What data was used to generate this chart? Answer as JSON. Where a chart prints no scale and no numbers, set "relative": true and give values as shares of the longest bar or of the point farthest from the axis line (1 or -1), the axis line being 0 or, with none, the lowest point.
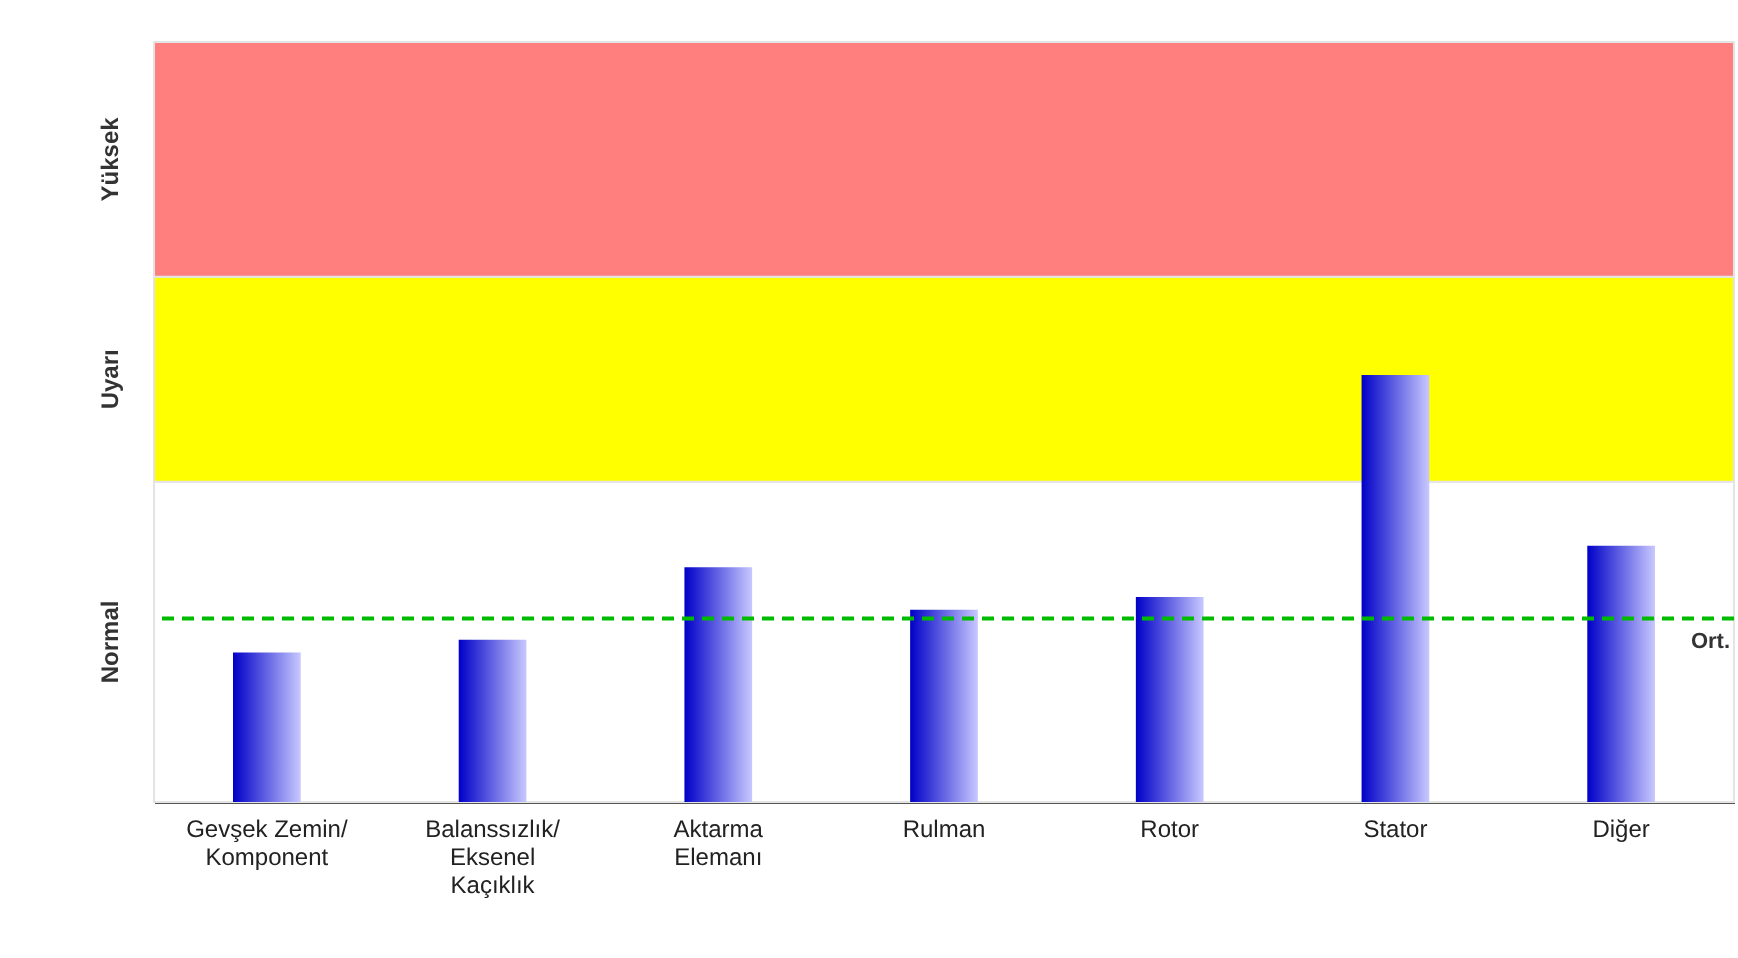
{
  "chart_data": {
    "type": "bar",
    "relative": true,
    "categories": [
      "Gevşek Zemin/\nKomponent",
      "Balanssızlık/\nEksenel\nKaçıklık",
      "Aktarma\nElemanı",
      "Rulman",
      "Rotor",
      "Stator",
      "Diğer"
    ],
    "values": [
      0.35,
      0.38,
      0.55,
      0.45,
      0.48,
      1,
      0.6
    ],
    "color": "#0000c8",
    "bands": [
      {
        "axis": "y",
        "from": 0,
        "to": 0.75,
        "label": "Normal",
        "color": "#ffffff"
      },
      {
        "axis": "y",
        "from": 0.75,
        "to": 1.23,
        "label": "Uyarı",
        "color": "#ffff00"
      },
      {
        "axis": "y",
        "from": 1.23,
        "to": 1.78,
        "label": "Yüksek",
        "color": "#ff7f7f"
      }
    ],
    "ref_lines": [
      {
        "axis": "y",
        "value": 0.43,
        "label": "Ort.",
        "color": "#00bb00",
        "line_style": "dashed"
      }
    ]
  }
}
